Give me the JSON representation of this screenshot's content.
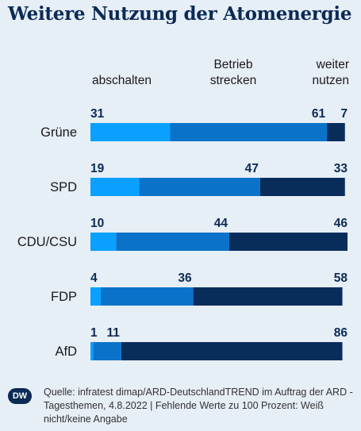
{
  "title": "Weitere Nutzung der Atomenergie",
  "columns": {
    "c1": "abschalten",
    "c2_line1": "Betrieb",
    "c2_line2": "strecken",
    "c3_line1": "weiter",
    "c3_line2": "nutzen"
  },
  "colors": {
    "abschalten": "#0aa0ff",
    "strecken": "#0a73c9",
    "nutzen": "#082d5b",
    "background": "#e6eef6",
    "label": "#0b2a55"
  },
  "chart_data": {
    "type": "bar",
    "orientation": "horizontal",
    "stacked": true,
    "title": "Weitere Nutzung der Atomenergie",
    "categories": [
      "Grüne",
      "SPD",
      "CDU/CSU",
      "FDP",
      "AfD"
    ],
    "series": [
      {
        "name": "abschalten",
        "values": [
          31,
          19,
          10,
          4,
          1
        ]
      },
      {
        "name": "Betrieb strecken",
        "values": [
          61,
          47,
          44,
          36,
          11
        ]
      },
      {
        "name": "weiter nutzen",
        "values": [
          7,
          33,
          46,
          58,
          86
        ]
      }
    ],
    "xlim": [
      0,
      100
    ],
    "grid": false,
    "legend": "top (column headers)"
  },
  "logo": "DW",
  "source": "Quelle: infratest dimap/ARD-DeutschlandTREND im Auftrag der ARD - Tagesthemen, 4.8.2022 | Fehlende Werte zu 100 Prozent: Weiß nicht/keine Angabe"
}
